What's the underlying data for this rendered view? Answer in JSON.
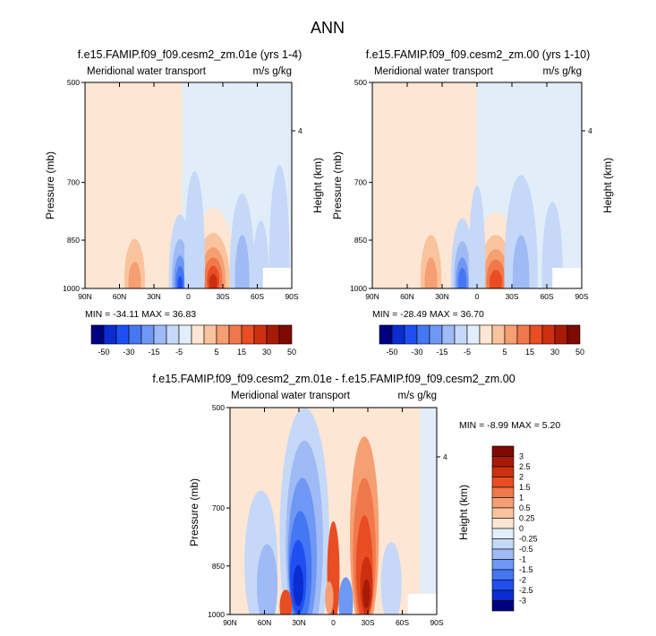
{
  "title": "ANN",
  "chart_data": [
    {
      "type": "heatmap",
      "title": "f.e15.FAMIP.f09_f09.cesm2_zm.01e (yrs 1-4)",
      "left_label": "Meridional water transport",
      "right_label": "m/s g/kg",
      "ylabel": "Pressure (mb)",
      "ylabel_right": "Height (km)",
      "xticks": [
        "90N",
        "60N",
        "30N",
        "0",
        "30S",
        "60S",
        "90S"
      ],
      "yticks": [
        "500",
        "700",
        "850",
        "1000"
      ],
      "yticks_right": [
        "4"
      ],
      "stats": "MIN = -34.11   MAX =  36.83",
      "min": -34.11,
      "max": 36.83,
      "colorbar_labels": [
        "-50",
        "-30",
        "-15",
        "-5",
        "5",
        "15",
        "30",
        "50"
      ]
    },
    {
      "type": "heatmap",
      "title": "f.e15.FAMIP.f09_f09.cesm2_zm.00 (yrs 1-10)",
      "left_label": "Meridional water transport",
      "right_label": "m/s g/kg",
      "ylabel": "Pressure (mb)",
      "ylabel_right": "Height (km)",
      "xticks": [
        "90N",
        "60N",
        "30N",
        "0",
        "30S",
        "60S",
        "90S"
      ],
      "yticks": [
        "500",
        "700",
        "850",
        "1000"
      ],
      "yticks_right": [
        "4"
      ],
      "stats": "MIN = -28.49   MAX =  36.70",
      "min": -28.49,
      "max": 36.7,
      "colorbar_labels": [
        "-50",
        "-30",
        "-15",
        "-5",
        "5",
        "15",
        "30",
        "50"
      ]
    },
    {
      "type": "heatmap",
      "title": "f.e15.FAMIP.f09_f09.cesm2_zm.01e - f.e15.FAMIP.f09_f09.cesm2_zm.00",
      "left_label": "Meridional water transport",
      "right_label": "m/s g/kg",
      "ylabel": "Pressure (mb)",
      "ylabel_right": "Height (km)",
      "xticks": [
        "90N",
        "60N",
        "30N",
        "0",
        "30S",
        "60S",
        "90S"
      ],
      "yticks": [
        "500",
        "700",
        "850",
        "1000"
      ],
      "yticks_right": [
        "4"
      ],
      "stats": "MIN = -8.99   MAX =   5.20",
      "min": -8.99,
      "max": 5.2,
      "colorbar_labels": [
        "3",
        "2.5",
        "2",
        "1.5",
        "1",
        "0.5",
        "0.25",
        "0",
        "-0.25",
        "-0.5",
        "-1",
        "-1.5",
        "-2",
        "-2.5",
        "-3"
      ]
    }
  ],
  "colors": {
    "palette": [
      "#000080",
      "#0a2cd1",
      "#1f4ff0",
      "#4577f3",
      "#6f97f4",
      "#9fbaf5",
      "#c6d8f7",
      "#e2edfa",
      "#fde6d4",
      "#f9c39d",
      "#f59f73",
      "#f1784b",
      "#e84d23",
      "#cc3010",
      "#a81a08",
      "#7d0a03"
    ],
    "neg_bg": "#e2edfa",
    "pos_bg": "#fde6d4"
  }
}
